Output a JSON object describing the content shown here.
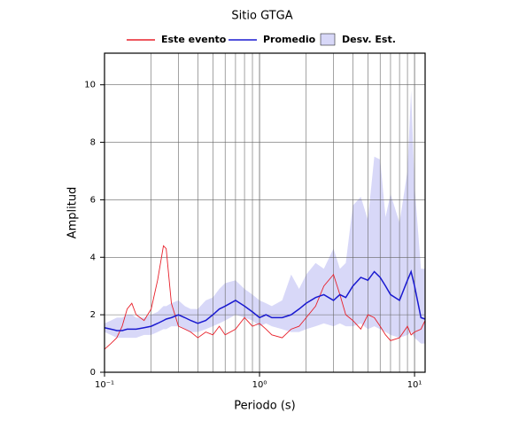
{
  "chart_data": {
    "type": "line",
    "title": "Sitio GTGA",
    "x_label": "Periodo (s)",
    "y_label": "Amplitud",
    "x_scale": "log",
    "xlim": [
      0.1,
      11.7
    ],
    "ylim": [
      0,
      11.1
    ],
    "xticks": [
      {
        "value": 0.1,
        "label": "10⁻¹"
      },
      {
        "value": 1,
        "label": "10⁰"
      },
      {
        "value": 10,
        "label": "10¹"
      }
    ],
    "yticks": [
      0,
      2,
      4,
      6,
      8,
      10
    ],
    "grid": true,
    "minor_grid": true,
    "legend": "top",
    "x": [
      0.1,
      0.11,
      0.12,
      0.13,
      0.14,
      0.15,
      0.16,
      0.18,
      0.2,
      0.22,
      0.24,
      0.25,
      0.27,
      0.3,
      0.33,
      0.36,
      0.4,
      0.45,
      0.5,
      0.55,
      0.6,
      0.7,
      0.8,
      0.9,
      1,
      1.1,
      1.2,
      1.4,
      1.6,
      1.8,
      2,
      2.3,
      2.6,
      3,
      3.3,
      3.6,
      4,
      4.5,
      5,
      5.5,
      6,
      6.5,
      7,
      8,
      9,
      9.5,
      10,
      11,
      11.7
    ],
    "series": [
      {
        "name": "Este evento",
        "color": "#e8202a",
        "values": [
          0.8,
          1.0,
          1.2,
          1.6,
          2.2,
          2.4,
          2.0,
          1.8,
          2.2,
          3.2,
          4.4,
          4.3,
          2.4,
          1.6,
          1.5,
          1.4,
          1.2,
          1.4,
          1.3,
          1.6,
          1.3,
          1.5,
          1.9,
          1.6,
          1.7,
          1.5,
          1.3,
          1.2,
          1.5,
          1.6,
          1.9,
          2.3,
          3.0,
          3.4,
          2.7,
          2.0,
          1.8,
          1.5,
          2.0,
          1.9,
          1.6,
          1.3,
          1.1,
          1.2,
          1.6,
          1.3,
          1.4,
          1.5,
          1.8
        ]
      },
      {
        "name": "Promedio",
        "color": "#1a1ad0",
        "values": [
          1.55,
          1.5,
          1.45,
          1.45,
          1.5,
          1.5,
          1.5,
          1.55,
          1.6,
          1.7,
          1.8,
          1.85,
          1.9,
          2.0,
          1.9,
          1.8,
          1.7,
          1.8,
          2.0,
          2.2,
          2.3,
          2.5,
          2.3,
          2.1,
          1.9,
          2.0,
          1.9,
          1.9,
          2.0,
          2.2,
          2.4,
          2.6,
          2.7,
          2.5,
          2.7,
          2.6,
          3.0,
          3.3,
          3.2,
          3.5,
          3.3,
          3.0,
          2.7,
          2.5,
          3.2,
          3.5,
          3.0,
          1.9,
          1.85
        ]
      },
      {
        "name": "Desv. Est.",
        "color": "#d8d8f8",
        "type": "band",
        "lower": [
          1.4,
          1.3,
          1.2,
          1.2,
          1.2,
          1.2,
          1.2,
          1.3,
          1.3,
          1.4,
          1.5,
          1.5,
          1.6,
          1.6,
          1.5,
          1.4,
          1.4,
          1.5,
          1.6,
          1.7,
          1.8,
          2.0,
          1.9,
          1.8,
          1.6,
          1.7,
          1.6,
          1.5,
          1.4,
          1.4,
          1.5,
          1.6,
          1.7,
          1.6,
          1.7,
          1.6,
          1.6,
          1.7,
          1.5,
          1.6,
          1.5,
          1.4,
          1.3,
          1.2,
          1.3,
          1.4,
          1.2,
          1.0,
          1.0
        ],
        "upper": [
          1.7,
          1.8,
          1.9,
          1.9,
          2.0,
          2.0,
          1.9,
          1.9,
          2.0,
          2.1,
          2.3,
          2.3,
          2.4,
          2.5,
          2.3,
          2.2,
          2.2,
          2.5,
          2.6,
          2.9,
          3.1,
          3.2,
          2.9,
          2.7,
          2.5,
          2.4,
          2.3,
          2.5,
          3.4,
          2.9,
          3.4,
          3.8,
          3.6,
          4.3,
          3.6,
          3.8,
          5.8,
          6.1,
          5.3,
          7.5,
          7.4,
          5.4,
          6.2,
          5.2,
          7.0,
          9.8,
          6.5,
          3.6,
          3.6
        ]
      }
    ]
  }
}
